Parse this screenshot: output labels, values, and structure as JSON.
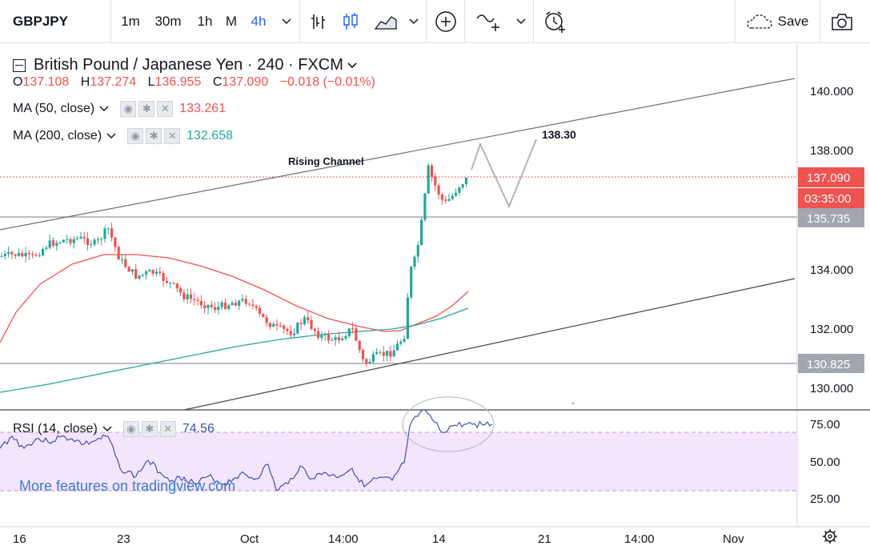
{
  "toolbar": {
    "symbol": "GBPJPY",
    "intervals": [
      "1m",
      "30m",
      "1h",
      "M",
      "4h"
    ],
    "active_interval": "4h",
    "save_label": "Save"
  },
  "header": {
    "title": "British Pound / Japanese Yen · 240 · FXCM",
    "ohlc": {
      "o_label": "O",
      "o": "137.108",
      "h_label": "H",
      "h": "137.274",
      "l_label": "L",
      "l": "136.955",
      "c_label": "C",
      "c": "137.090",
      "change": "−0.018 (−0.01%)"
    }
  },
  "indicators": {
    "ma50": {
      "label": "MA (50, close)",
      "value": "133.261",
      "color": "#ef5350"
    },
    "ma200": {
      "label": "MA (200, close)",
      "value": "132.658",
      "color": "#26a69a"
    },
    "rsi": {
      "label": "RSI (14, close)",
      "value": "74.56",
      "color": "#3f51b5"
    }
  },
  "annotations": {
    "channel_label": "Rising Channel",
    "target_label": "138.30"
  },
  "price_axis": {
    "ticks": [
      "140.000",
      "138.000",
      "134.000",
      "132.000",
      "130.000"
    ],
    "last_price": "137.090",
    "countdown": "03:35:00",
    "level_upper": "135.735",
    "level_lower": "130.825"
  },
  "rsi_axis": {
    "ticks": [
      "75.00",
      "50.00",
      "25.00"
    ]
  },
  "time_axis": {
    "ticks": [
      "16",
      "23",
      "Oct",
      "14:00",
      "14",
      "21",
      "14:00",
      "Nov"
    ]
  },
  "watermark": "More features on tradingview.com",
  "colors": {
    "up": "#26a69a",
    "down": "#ef5350",
    "rsi_band": "#f3e5fb",
    "line_gray": "#9598a1"
  }
}
